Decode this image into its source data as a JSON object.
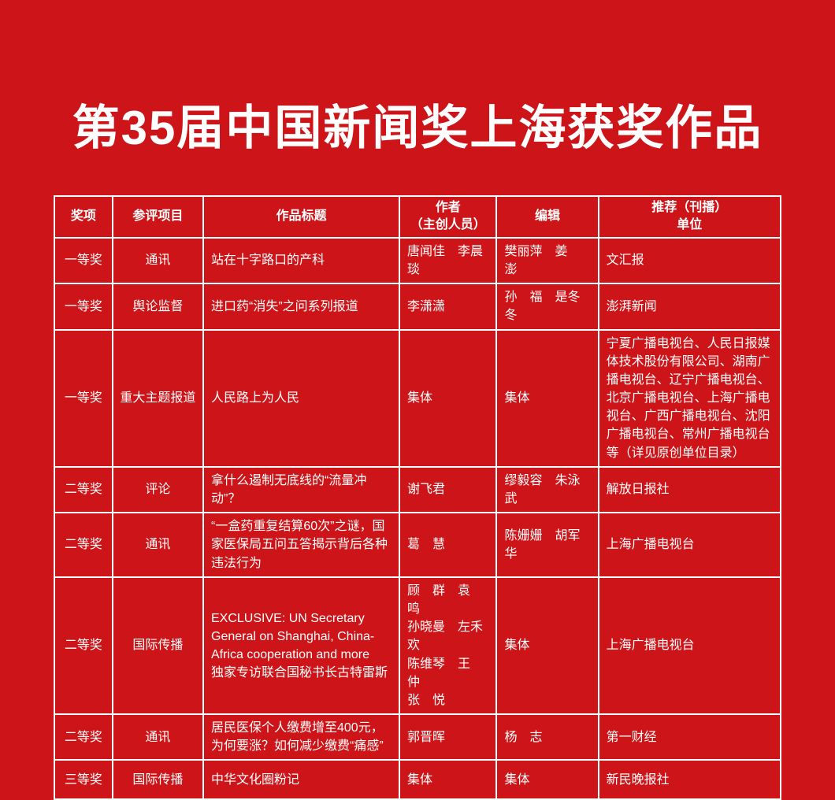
{
  "page": {
    "title": "第35届中国新闻奖上海获奖作品",
    "colors": {
      "background": "#cd1519",
      "border": "#ffffff",
      "text": "#ffffff"
    }
  },
  "table": {
    "columns": [
      {
        "key": "award",
        "label": "奖项"
      },
      {
        "key": "category",
        "label": "参评项目"
      },
      {
        "key": "title",
        "label": "作品标题"
      },
      {
        "key": "authors",
        "label": "作者\n（主创人员）"
      },
      {
        "key": "editors",
        "label": "编辑"
      },
      {
        "key": "unit",
        "label": "推荐（刊播）\n单位"
      }
    ],
    "rows": [
      {
        "award": "一等奖",
        "category": "通讯",
        "title": "站在十字路口的产科",
        "authors": "唐闻佳　李晨琰",
        "editors": "樊丽萍　姜　澎",
        "unit": "文汇报"
      },
      {
        "award": "一等奖",
        "category": "舆论监督",
        "title": "进口药“消失”之问系列报道",
        "authors": "李潇潇",
        "editors": "孙　福　是冬冬",
        "unit": "澎湃新闻"
      },
      {
        "award": "一等奖",
        "category": "重大主题报道",
        "title": "人民路上为人民",
        "authors": "集体",
        "editors": "集体",
        "unit": "宁夏广播电视台、人民日报媒体技术股份有限公司、湖南广播电视台、辽宁广播电视台、北京广播电视台、上海广播电视台、广西广播电视台、沈阳广播电视台、常州广播电视台等（详见原创单位目录）"
      },
      {
        "award": "二等奖",
        "category": "评论",
        "title": "拿什么遏制无底线的“流量冲动”？",
        "authors": "谢飞君",
        "editors": "缪毅容　朱泳武",
        "unit": "解放日报社"
      },
      {
        "award": "二等奖",
        "category": "通讯",
        "title": "“一盒药重复结算60次”之谜，国家医保局五问五答揭示背后各种违法行为",
        "authors": "葛　慧",
        "editors": "陈姗姗　胡军华",
        "unit": "上海广播电视台"
      },
      {
        "award": "二等奖",
        "category": "国际传播",
        "title": "EXCLUSIVE: UN Secretary General on Shanghai, China-Africa cooperation and more\n独家专访联合国秘书长古特雷斯",
        "authors": "顾　群　袁　鸣\n孙晓曼　左禾欢\n陈维琴　王　仲\n张　悦",
        "editors": "集体",
        "unit": "上海广播电视台"
      },
      {
        "award": "二等奖",
        "category": "通讯",
        "title": "居民医保个人缴费增至400元，为何要涨？如何减少缴费“痛感”",
        "authors": "郭晋晖",
        "editors": "杨　志",
        "unit": "第一财经"
      },
      {
        "award": "三等奖",
        "category": "国际传播",
        "title": "中华文化圈粉记",
        "authors": "集体",
        "editors": "集体",
        "unit": "新民晚报社"
      }
    ]
  }
}
